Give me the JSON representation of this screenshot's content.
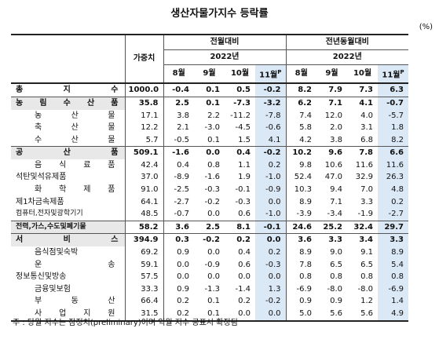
{
  "header": {
    "title": "생산자물가지수 등락률",
    "unit": "(%)",
    "weight_label": "가중치",
    "groups": [
      {
        "label": "전월대비",
        "year": "2022년",
        "months": [
          "8월",
          "9월",
          "10월",
          "11월"
        ],
        "prelim_mark": "P"
      },
      {
        "label": "전년동월대비",
        "year": "2022년",
        "months": [
          "8월",
          "9월",
          "10월",
          "11월"
        ],
        "prelim_mark": "P"
      }
    ]
  },
  "table": {
    "rows": [
      {
        "level": "total",
        "label": "총 지 수",
        "weight": "1000.0",
        "mom": [
          "-0.4",
          "0.1",
          "0.5",
          "-0.2"
        ],
        "yoy": [
          "8.2",
          "7.9",
          "7.3",
          "6.3"
        ]
      },
      {
        "level": "group",
        "label": "농 림 수 산 품",
        "weight": "35.8",
        "mom": [
          "2.5",
          "0.1",
          "-7.3",
          "-3.2"
        ],
        "yoy": [
          "6.2",
          "7.1",
          "4.1",
          "-0.7"
        ]
      },
      {
        "level": "item",
        "label": "농 산 물",
        "weight": "17.1",
        "mom": [
          "3.8",
          "2.2",
          "-11.2",
          "-7.8"
        ],
        "yoy": [
          "7.4",
          "12.0",
          "4.0",
          "-5.7"
        ]
      },
      {
        "level": "item",
        "label": "축 산 물",
        "weight": "12.2",
        "mom": [
          "2.1",
          "-3.0",
          "-4.5",
          "-0.6"
        ],
        "yoy": [
          "5.8",
          "2.0",
          "3.1",
          "1.8"
        ]
      },
      {
        "level": "item",
        "label": "수 산 물",
        "weight": "5.7",
        "mom": [
          "-0.5",
          "0.1",
          "1.5",
          "4.1"
        ],
        "yoy": [
          "4.2",
          "3.8",
          "6.8",
          "8.2"
        ]
      },
      {
        "level": "group",
        "label": "공 산 품",
        "weight": "509.1",
        "mom": [
          "-1.6",
          "0.0",
          "0.4",
          "-0.2"
        ],
        "yoy": [
          "10.2",
          "9.6",
          "7.8",
          "6.6"
        ]
      },
      {
        "level": "item",
        "label": "음 식 료 품",
        "weight": "42.4",
        "mom": [
          "0.4",
          "0.8",
          "1.1",
          "0.2"
        ],
        "yoy": [
          "9.8",
          "10.6",
          "11.6",
          "11.6"
        ]
      },
      {
        "level": "item2",
        "label": "석탄및석유제품",
        "weight": "37.0",
        "mom": [
          "-8.9",
          "-1.6",
          "1.9",
          "-1.0"
        ],
        "yoy": [
          "52.4",
          "47.0",
          "32.9",
          "26.3"
        ]
      },
      {
        "level": "item",
        "label": "화 학 제 품",
        "weight": "91.0",
        "mom": [
          "-2.5",
          "-0.3",
          "-0.1",
          "-0.9"
        ],
        "yoy": [
          "10.3",
          "9.4",
          "7.0",
          "4.8"
        ]
      },
      {
        "level": "item2",
        "label": "제1차금속제품",
        "weight": "64.1",
        "mom": [
          "-2.7",
          "-0.2",
          "-0.3",
          "0.0"
        ],
        "yoy": [
          "8.9",
          "7.1",
          "3.3",
          "0.2"
        ]
      },
      {
        "level": "item2",
        "label": "컴퓨터,전자및광학기기",
        "weight": "48.5",
        "mom": [
          "-0.7",
          "0.0",
          "0.6",
          "-1.0"
        ],
        "yoy": [
          "-3.9",
          "-3.4",
          "-1.9",
          "-2.7"
        ]
      },
      {
        "level": "group",
        "label": "전력,가스,수도및폐기물",
        "weight": "58.2",
        "mom": [
          "3.6",
          "2.5",
          "8.1",
          "-0.1"
        ],
        "yoy": [
          "24.6",
          "25.2",
          "32.4",
          "29.7"
        ]
      },
      {
        "level": "group",
        "label": "서 비 스",
        "weight": "394.9",
        "mom": [
          "0.3",
          "-0.2",
          "0.2",
          "0.0"
        ],
        "yoy": [
          "3.6",
          "3.3",
          "3.4",
          "3.3"
        ]
      },
      {
        "level": "item",
        "label": "음식점및숙박",
        "weight": "69.2",
        "mom": [
          "0.9",
          "0.0",
          "0.4",
          "0.2"
        ],
        "yoy": [
          "8.9",
          "9.0",
          "9.1",
          "8.9"
        ]
      },
      {
        "level": "item",
        "label": "운 송",
        "weight": "59.1",
        "mom": [
          "0.0",
          "-0.9",
          "0.6",
          "-0.3"
        ],
        "yoy": [
          "7.8",
          "6.5",
          "6.5",
          "5.4"
        ]
      },
      {
        "level": "item2",
        "label": "정보통신및방송",
        "weight": "57.5",
        "mom": [
          "0.0",
          "0.0",
          "0.0",
          "0.0"
        ],
        "yoy": [
          "0.8",
          "0.8",
          "0.8",
          "0.8"
        ]
      },
      {
        "level": "item",
        "label": "금융및보험",
        "weight": "33.3",
        "mom": [
          "0.9",
          "-1.3",
          "-1.4",
          "1.3"
        ],
        "yoy": [
          "-6.9",
          "-8.0",
          "-8.0",
          "-6.9"
        ]
      },
      {
        "level": "item",
        "label": "부 동 산",
        "weight": "66.4",
        "mom": [
          "0.2",
          "0.1",
          "0.2",
          "-0.2"
        ],
        "yoy": [
          "0.9",
          "0.9",
          "1.2",
          "1.4"
        ]
      },
      {
        "level": "item",
        "label": "사 업 지 원",
        "weight": "31.5",
        "mom": [
          "0.2",
          "0.1",
          "0.0",
          "0.0"
        ],
        "yoy": [
          "5.0",
          "5.6",
          "5.6",
          "4.9"
        ]
      }
    ]
  },
  "note": "주 : 당월 지수는 잠정치(preliminary)이며 익월 지수 공표시 확정됨"
}
